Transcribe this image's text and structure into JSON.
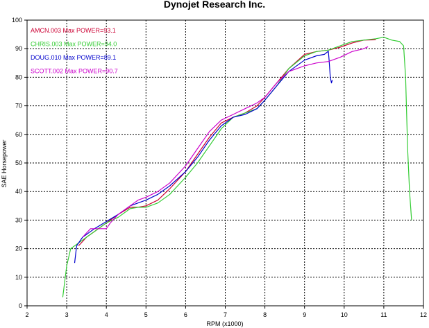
{
  "chart_data": {
    "type": "line",
    "title": "Dynojet Research Inc.",
    "xlabel": "RPM (x1000)",
    "ylabel": "SAE Horsepower",
    "xlim": [
      2,
      12
    ],
    "ylim": [
      0,
      100
    ],
    "xticks": [
      "2",
      "3",
      "4",
      "5",
      "6",
      "7",
      "8",
      "9",
      "10",
      "11",
      "12"
    ],
    "yticks": [
      "0",
      "10",
      "20",
      "30",
      "40",
      "50",
      "60",
      "70",
      "80",
      "90",
      "100"
    ],
    "grid": "dashed",
    "legend_placement": "top-left",
    "series": [
      {
        "name": "AMCN.003",
        "legend_text": "AMCN.003  Max POWER=93.1",
        "color": "#cc0033",
        "x": [
          3.3,
          3.5,
          3.8,
          4.0,
          4.3,
          4.6,
          4.8,
          5.0,
          5.3,
          5.6,
          6.0,
          6.3,
          6.6,
          6.9,
          7.2,
          7.5,
          7.8,
          8.0,
          8.3,
          8.6,
          9.0,
          9.3,
          9.6,
          9.9,
          10.2,
          10.5,
          10.8
        ],
        "y": [
          21,
          24,
          27,
          29,
          32,
          34.5,
          34.5,
          35,
          37,
          41,
          47,
          53,
          59,
          64,
          66,
          67.5,
          70,
          73,
          78,
          83,
          88,
          89,
          89.5,
          90.5,
          92,
          93,
          93.1
        ]
      },
      {
        "name": "CHRIS.003",
        "legend_text": "CHRIS.003  Max POWER=94.0",
        "color": "#33cc33",
        "x": [
          2.9,
          3.0,
          3.1,
          3.3,
          3.5,
          3.8,
          4.0,
          4.3,
          4.6,
          4.8,
          5.0,
          5.3,
          5.6,
          6.0,
          6.3,
          6.6,
          6.9,
          7.2,
          7.5,
          7.8,
          8.0,
          8.3,
          8.6,
          9.0,
          9.3,
          9.6,
          9.9,
          10.2,
          10.5,
          10.8,
          11.0,
          11.2,
          11.4,
          11.5,
          11.55,
          11.6,
          11.65,
          11.7
        ],
        "y": [
          3,
          14,
          20,
          22,
          24,
          27,
          29,
          31,
          34,
          34.5,
          34.5,
          36,
          39,
          45,
          50,
          56,
          62,
          66,
          67.5,
          69,
          72,
          77,
          83,
          87.5,
          89,
          89.5,
          91,
          92.5,
          93,
          93.5,
          94,
          93,
          92.5,
          91,
          80,
          55,
          40,
          30
        ]
      },
      {
        "name": "DOUG.010",
        "legend_text": "DOUG.010  Max POWER=89.1",
        "color": "#0000cc",
        "x": [
          3.2,
          3.25,
          3.4,
          3.7,
          4.0,
          4.3,
          4.6,
          4.8,
          5.0,
          5.3,
          5.6,
          6.0,
          6.3,
          6.6,
          6.9,
          7.2,
          7.5,
          7.8,
          8.0,
          8.3,
          8.6,
          9.0,
          9.3,
          9.5,
          9.6,
          9.62,
          9.65,
          9.68,
          9.7
        ],
        "y": [
          15,
          21,
          24,
          27,
          29.5,
          32,
          35,
          36,
          37,
          39,
          42,
          47,
          52,
          58,
          63,
          66,
          67,
          69,
          72,
          77,
          82,
          86,
          87.5,
          88,
          89.1,
          86,
          80,
          78,
          79
        ]
      },
      {
        "name": "SCOTT.002",
        "legend_text": "SCOTT.002  Max POWER=90.7",
        "color": "#cc00cc",
        "x": [
          3.4,
          3.6,
          3.8,
          4.0,
          4.1,
          4.3,
          4.6,
          4.8,
          5.0,
          5.3,
          5.6,
          6.0,
          6.3,
          6.6,
          6.9,
          7.2,
          7.5,
          7.8,
          8.0,
          8.3,
          8.6,
          9.0,
          9.3,
          9.6,
          9.9,
          10.2,
          10.5,
          10.6
        ],
        "y": [
          24,
          27,
          27,
          27,
          29,
          32,
          35,
          37,
          38,
          40,
          43,
          49,
          55,
          61,
          65,
          67,
          69,
          71,
          73,
          78,
          82,
          84,
          85,
          85.5,
          87,
          89,
          90,
          90.7
        ]
      }
    ]
  }
}
